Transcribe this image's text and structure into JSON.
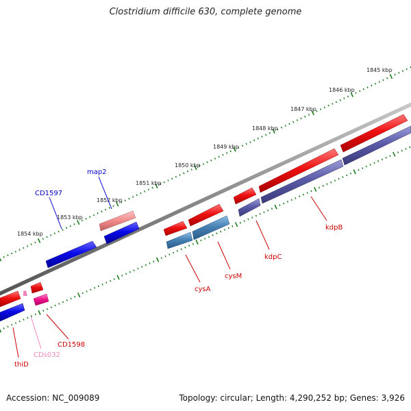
{
  "title": "Clostridium difficile 630, complete genome",
  "footer": {
    "accession": "Accession: NC_009089",
    "summary": "Topology: circular; Length: 4,290,252 bp; Genes: 3,926"
  },
  "colors": {
    "backbone": "#8a8a8a",
    "tick": "#1a7a1a",
    "forward_gene": "#ee1111",
    "forward_pseudo": "#f08a8a",
    "forward_cds": "#ee1188",
    "reverse_gene": "#0a0ae8",
    "reverse_gene_alt": "#5a5aa8",
    "reverse_light": "#4682b4",
    "label_red": "#cc0000",
    "label_blue": "#0000cc",
    "label_pink": "#ee88bb"
  },
  "ruler": {
    "labels": [
      "1845 kbp",
      "1846 kbp",
      "1847 kbp",
      "1848 kbp",
      "1849 kbp",
      "1850 kbp",
      "1851 kbp",
      "1852 kbp",
      "1853 kbp",
      "1854 kbp"
    ]
  },
  "gene_labels": {
    "map2": "map2",
    "CD1597": "CD1597",
    "kdpB": "kdpB",
    "kdpC": "kdpC",
    "cysM": "cysM",
    "cysA": "cysA",
    "CD1598": "CD1598",
    "CDs032": "CDs032",
    "thiD": "thiD"
  }
}
